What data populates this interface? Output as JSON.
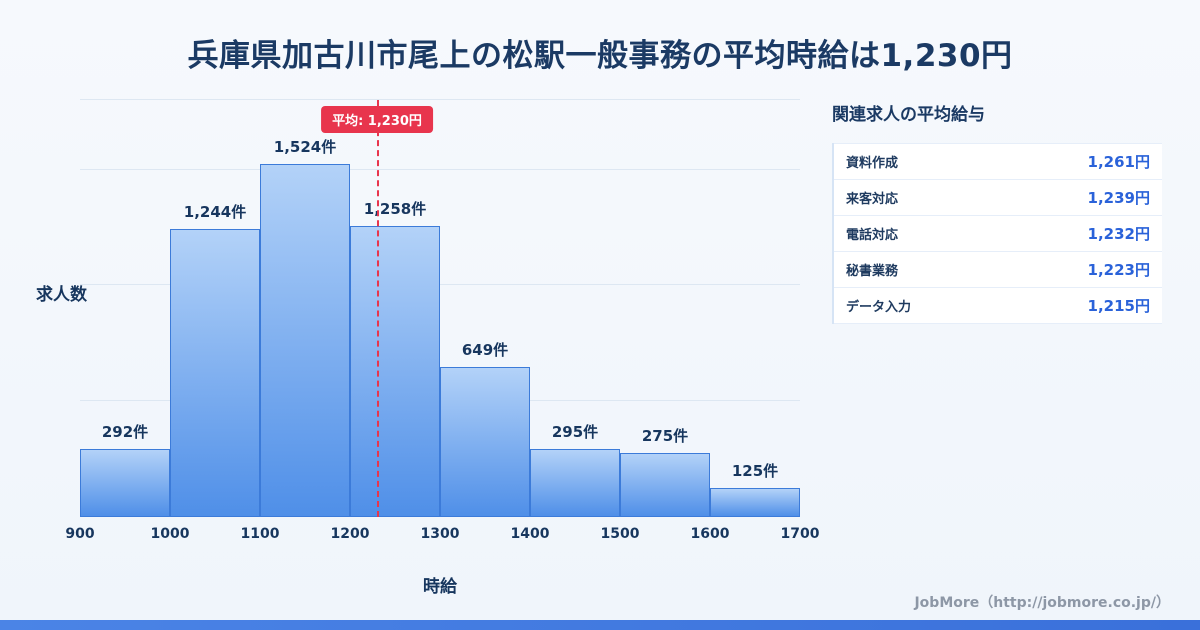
{
  "page": {
    "title": "兵庫県加古川市尾上の松駅一般事務の平均時給は1,230円",
    "footer_credit": "JobMore（http://jobmore.co.jp/）"
  },
  "chart_data": {
    "type": "bar",
    "subtype": "histogram",
    "title": "兵庫県加古川市尾上の松駅一般事務の平均時給は1,230円",
    "xlabel": "時給",
    "ylabel": "求人数",
    "xlim": [
      900,
      1700
    ],
    "ylim": [
      0,
      1800
    ],
    "x_ticks": [
      900,
      1000,
      1100,
      1200,
      1300,
      1400,
      1500,
      1600,
      1700
    ],
    "gridlines": [
      500,
      1000,
      1500,
      1800
    ],
    "bins": [
      {
        "range": [
          900,
          1000
        ],
        "value": 292,
        "label": "292件"
      },
      {
        "range": [
          1000,
          1100
        ],
        "value": 1244,
        "label": "1,244件"
      },
      {
        "range": [
          1100,
          1200
        ],
        "value": 1524,
        "label": "1,524件"
      },
      {
        "range": [
          1200,
          1300
        ],
        "value": 1258,
        "label": "1,258件"
      },
      {
        "range": [
          1300,
          1400
        ],
        "value": 649,
        "label": "649件"
      },
      {
        "range": [
          1400,
          1500
        ],
        "value": 295,
        "label": "295件"
      },
      {
        "range": [
          1500,
          1600
        ],
        "value": 275,
        "label": "275件"
      },
      {
        "range": [
          1600,
          1700
        ],
        "value": 125,
        "label": "125件"
      }
    ],
    "average": 1230,
    "average_label": "平均: 1,230円",
    "legend": "none",
    "grid": "horizontal",
    "colors": {
      "bar_top": "#b3d2f8",
      "bar_bottom": "#4f8fe8",
      "bar_border": "#3c7bd9",
      "average_line": "#e8354d",
      "text": "#17365e"
    }
  },
  "panel": {
    "title": "関連求人の平均給与",
    "rows": [
      {
        "label": "資料作成",
        "value": "1,261円"
      },
      {
        "label": "来客対応",
        "value": "1,239円"
      },
      {
        "label": "電話対応",
        "value": "1,232円"
      },
      {
        "label": "秘書業務",
        "value": "1,223円"
      },
      {
        "label": "データ入力",
        "value": "1,215円"
      }
    ],
    "value_color": "#2a62d9"
  }
}
